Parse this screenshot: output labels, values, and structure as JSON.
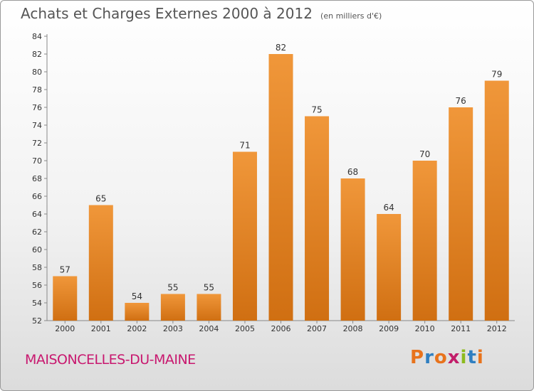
{
  "header": {
    "title": "Achats et Charges Externes 2000 à 2012",
    "subtitle": "(en milliers d'€)"
  },
  "footer": {
    "commune": "MAISONCELLES-DU-MAINE",
    "brand": "Proxiti",
    "brand_colors": [
      "#e8731c",
      "#2f7fc1",
      "#e8731c",
      "#c21e6a",
      "#8dbb1e",
      "#2f7fc1",
      "#e8731c"
    ]
  },
  "chart_data": {
    "type": "bar",
    "title": "Achats et Charges Externes 2000 à 2012",
    "subtitle": "(en milliers d'€)",
    "categories": [
      "2000",
      "2001",
      "2002",
      "2003",
      "2004",
      "2005",
      "2006",
      "2007",
      "2008",
      "2009",
      "2010",
      "2011",
      "2012"
    ],
    "values": [
      57,
      65,
      54,
      55,
      55,
      71,
      82,
      75,
      68,
      64,
      70,
      76,
      79
    ],
    "ylim": [
      52,
      84
    ],
    "yticks": [
      52,
      54,
      56,
      58,
      60,
      62,
      64,
      66,
      68,
      70,
      72,
      74,
      76,
      78,
      80,
      82,
      84
    ],
    "grid": false,
    "bar_color": "#f0973a",
    "bar_color_dark": "#d06f12",
    "xlabel": "",
    "ylabel": ""
  }
}
